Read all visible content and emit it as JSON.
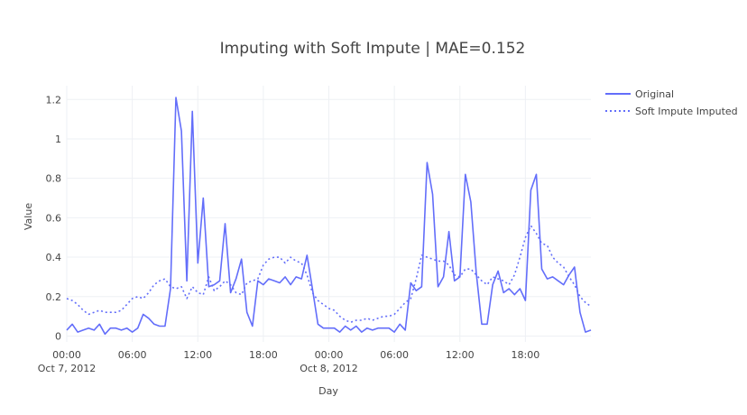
{
  "chart_data": {
    "type": "line",
    "title": "Imputing with Soft Impute | MAE=0.152",
    "xlabel": "Day",
    "ylabel": "Value",
    "x_start": "2012-10-07 00:00",
    "x_step_hours": 0.5,
    "xlim": [
      "2012-10-07 00:00",
      "2012-10-08 23:30"
    ],
    "ylim": [
      -0.03,
      1.27
    ],
    "y_ticks": [
      0,
      0.2,
      0.4,
      0.6,
      0.8,
      1,
      1.2
    ],
    "y_tick_labels": [
      "0",
      "0.2",
      "0.4",
      "0.6",
      "0.8",
      "1",
      "1.2"
    ],
    "x_ticks": [
      {
        "hour": 0,
        "label": "00:00",
        "sublabel": "Oct 7, 2012"
      },
      {
        "hour": 6,
        "label": "06:00",
        "sublabel": ""
      },
      {
        "hour": 12,
        "label": "12:00",
        "sublabel": ""
      },
      {
        "hour": 18,
        "label": "18:00",
        "sublabel": ""
      },
      {
        "hour": 24,
        "label": "00:00",
        "sublabel": "Oct 8, 2012"
      },
      {
        "hour": 30,
        "label": "06:00",
        "sublabel": ""
      },
      {
        "hour": 36,
        "label": "12:00",
        "sublabel": ""
      },
      {
        "hour": 42,
        "label": "18:00",
        "sublabel": ""
      }
    ],
    "grid": true,
    "legend_position": "top-right",
    "series": [
      {
        "name": "Original",
        "color": "#636efa",
        "dash": "solid",
        "values": [
          0.03,
          0.06,
          0.02,
          0.03,
          0.04,
          0.03,
          0.06,
          0.01,
          0.04,
          0.04,
          0.03,
          0.04,
          0.02,
          0.04,
          0.11,
          0.09,
          0.06,
          0.05,
          0.05,
          0.24,
          1.21,
          1.04,
          0.28,
          1.14,
          0.37,
          0.7,
          0.25,
          0.26,
          0.28,
          0.57,
          0.22,
          0.29,
          0.39,
          0.12,
          0.05,
          0.28,
          0.26,
          0.29,
          0.28,
          0.27,
          0.3,
          0.26,
          0.3,
          0.29,
          0.41,
          0.24,
          0.06,
          0.04,
          0.04,
          0.04,
          0.02,
          0.05,
          0.03,
          0.05,
          0.02,
          0.04,
          0.03,
          0.04,
          0.04,
          0.04,
          0.02,
          0.06,
          0.03,
          0.27,
          0.23,
          0.25,
          0.88,
          0.72,
          0.25,
          0.3,
          0.53,
          0.28,
          0.3,
          0.82,
          0.68,
          0.32,
          0.06,
          0.06,
          0.26,
          0.33,
          0.22,
          0.24,
          0.21,
          0.24,
          0.18,
          0.74,
          0.82,
          0.34,
          0.29,
          0.3,
          0.28,
          0.26,
          0.31,
          0.35,
          0.12,
          0.02,
          0.03
        ]
      },
      {
        "name": "Soft Impute Imputed",
        "color": "#636efa",
        "dash": "dot",
        "values": [
          0.19,
          0.18,
          0.16,
          0.13,
          0.11,
          0.12,
          0.13,
          0.12,
          0.12,
          0.12,
          0.13,
          0.16,
          0.19,
          0.2,
          0.19,
          0.22,
          0.26,
          0.28,
          0.29,
          0.25,
          0.24,
          0.25,
          0.19,
          0.25,
          0.22,
          0.21,
          0.3,
          0.23,
          0.25,
          0.28,
          0.26,
          0.22,
          0.21,
          0.27,
          0.28,
          0.29,
          0.36,
          0.39,
          0.4,
          0.4,
          0.37,
          0.4,
          0.38,
          0.37,
          0.31,
          0.22,
          0.18,
          0.16,
          0.14,
          0.13,
          0.1,
          0.08,
          0.07,
          0.08,
          0.08,
          0.09,
          0.08,
          0.09,
          0.1,
          0.1,
          0.11,
          0.14,
          0.17,
          0.19,
          0.29,
          0.41,
          0.4,
          0.39,
          0.38,
          0.38,
          0.36,
          0.31,
          0.3,
          0.34,
          0.34,
          0.31,
          0.28,
          0.26,
          0.3,
          0.29,
          0.28,
          0.26,
          0.31,
          0.4,
          0.5,
          0.56,
          0.52,
          0.47,
          0.46,
          0.4,
          0.37,
          0.35,
          0.3,
          0.26,
          0.2,
          0.17,
          0.15
        ]
      }
    ]
  }
}
